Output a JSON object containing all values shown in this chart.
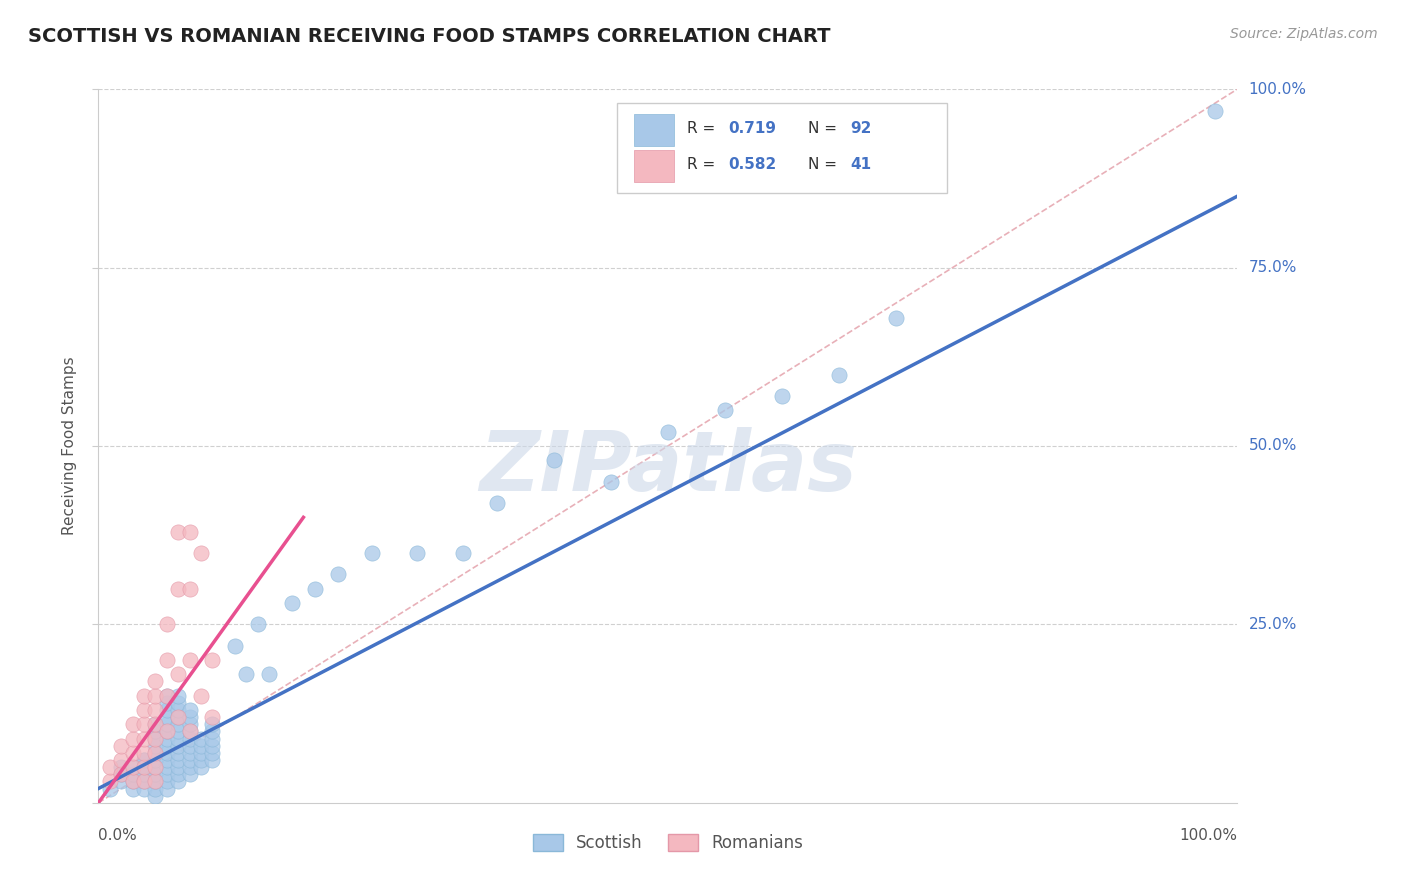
{
  "title": "SCOTTISH VS ROMANIAN RECEIVING FOOD STAMPS CORRELATION CHART",
  "source": "Source: ZipAtlas.com",
  "ylabel": "Receiving Food Stamps",
  "xlim": [
    0,
    100
  ],
  "ylim": [
    0,
    100
  ],
  "scottish_color": "#a8c8e8",
  "romanian_color": "#f4b8c0",
  "line1_color": "#4472c4",
  "line2_color": "#e85090",
  "diagonal_color": "#e0b8c0",
  "background_color": "#ffffff",
  "grid_color": "#d0d0d0",
  "title_color": "#222222",
  "scottish_x": [
    1,
    2,
    2,
    2,
    3,
    3,
    3,
    3,
    4,
    4,
    4,
    4,
    4,
    4,
    5,
    5,
    5,
    5,
    5,
    5,
    5,
    5,
    5,
    5,
    5,
    6,
    6,
    6,
    6,
    6,
    6,
    6,
    6,
    6,
    6,
    6,
    6,
    6,
    6,
    7,
    7,
    7,
    7,
    7,
    7,
    7,
    7,
    7,
    7,
    7,
    7,
    7,
    8,
    8,
    8,
    8,
    8,
    8,
    8,
    8,
    8,
    8,
    9,
    9,
    9,
    9,
    9,
    10,
    10,
    10,
    10,
    10,
    10,
    12,
    13,
    14,
    15,
    17,
    19,
    21,
    24,
    28,
    32,
    35,
    40,
    45,
    50,
    55,
    60,
    65,
    70,
    98
  ],
  "scottish_y": [
    2,
    3,
    4,
    5,
    2,
    3,
    4,
    5,
    6,
    2,
    3,
    4,
    5,
    6,
    1,
    2,
    3,
    4,
    5,
    6,
    7,
    8,
    9,
    10,
    11,
    2,
    3,
    4,
    5,
    6,
    7,
    8,
    9,
    10,
    11,
    12,
    13,
    14,
    15,
    3,
    4,
    5,
    6,
    7,
    8,
    9,
    10,
    11,
    12,
    13,
    14,
    15,
    4,
    5,
    6,
    7,
    8,
    9,
    10,
    11,
    12,
    13,
    5,
    6,
    7,
    8,
    9,
    6,
    7,
    8,
    9,
    10,
    11,
    22,
    18,
    25,
    18,
    28,
    30,
    32,
    35,
    35,
    35,
    42,
    48,
    45,
    52,
    55,
    57,
    60,
    68,
    97
  ],
  "romanian_x": [
    1,
    1,
    2,
    2,
    2,
    3,
    3,
    3,
    3,
    3,
    4,
    4,
    4,
    4,
    4,
    4,
    4,
    5,
    5,
    5,
    5,
    5,
    5,
    5,
    5,
    6,
    6,
    6,
    6,
    7,
    7,
    7,
    7,
    8,
    8,
    8,
    8,
    9,
    9,
    10,
    10
  ],
  "romanian_y": [
    3,
    5,
    4,
    6,
    8,
    3,
    5,
    7,
    9,
    11,
    3,
    5,
    7,
    9,
    11,
    13,
    15,
    3,
    5,
    7,
    9,
    11,
    13,
    15,
    17,
    10,
    15,
    20,
    25,
    12,
    18,
    30,
    38,
    10,
    20,
    30,
    38,
    15,
    35,
    12,
    20
  ],
  "scottish_line_x": [
    0,
    100
  ],
  "scottish_line_y": [
    2,
    85
  ],
  "romanian_line_x": [
    0,
    18
  ],
  "romanian_line_y": [
    0,
    40
  ]
}
